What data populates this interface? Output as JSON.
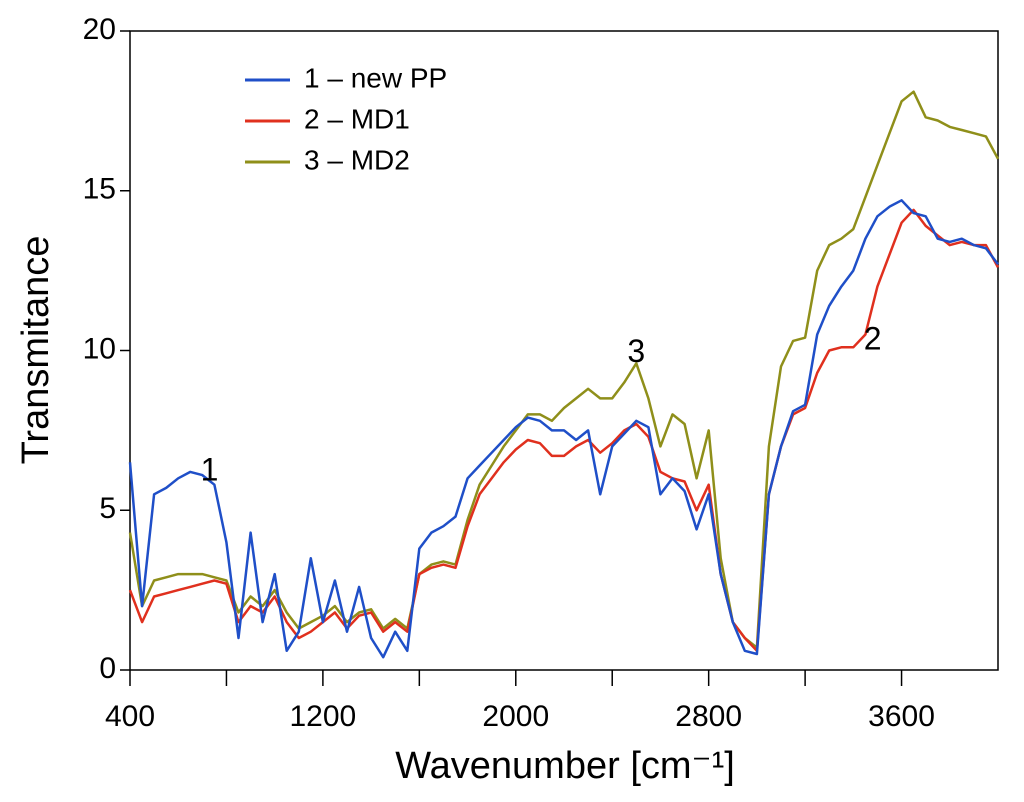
{
  "chart_data": {
    "type": "line",
    "x_label": "Wavenumber [cm⁻¹]",
    "y_label": "Transmitance",
    "xlim": [
      400,
      4000
    ],
    "xticks": [
      400,
      1200,
      2000,
      2800,
      3600
    ],
    "xminor_ticks": [
      800,
      1600,
      2400,
      3200
    ],
    "ylim": [
      0,
      20
    ],
    "yticks": [
      0,
      5,
      10,
      15,
      20
    ],
    "legend": "upper left",
    "x": [
      400,
      450,
      500,
      550,
      600,
      650,
      700,
      750,
      800,
      850,
      900,
      950,
      1000,
      1050,
      1100,
      1150,
      1200,
      1250,
      1300,
      1350,
      1400,
      1450,
      1500,
      1550,
      1600,
      1650,
      1700,
      1750,
      1800,
      1850,
      1900,
      1950,
      2000,
      2050,
      2100,
      2150,
      2200,
      2250,
      2300,
      2350,
      2400,
      2450,
      2500,
      2550,
      2600,
      2650,
      2700,
      2750,
      2800,
      2850,
      2900,
      2950,
      3000,
      3050,
      3100,
      3150,
      3200,
      3250,
      3300,
      3350,
      3400,
      3450,
      3500,
      3550,
      3600,
      3650,
      3700,
      3750,
      3800,
      3850,
      3900,
      3950,
      4000
    ],
    "series": [
      {
        "name": "1 – new PP",
        "color": "#1f4fc8",
        "values": [
          6.5,
          2.0,
          5.5,
          5.7,
          6.0,
          6.2,
          6.1,
          5.8,
          4.0,
          1.0,
          4.3,
          1.5,
          3.0,
          0.6,
          1.2,
          3.5,
          1.5,
          2.8,
          1.2,
          2.6,
          1.0,
          0.4,
          1.2,
          0.6,
          3.8,
          4.3,
          4.5,
          4.8,
          6.0,
          6.4,
          6.8,
          7.2,
          7.6,
          7.9,
          7.8,
          7.5,
          7.5,
          7.2,
          7.5,
          5.5,
          7.0,
          7.4,
          7.8,
          7.6,
          5.5,
          6.0,
          5.6,
          4.4,
          5.5,
          3.0,
          1.5,
          0.6,
          0.5,
          5.5,
          7.0,
          8.1,
          8.3,
          10.5,
          11.4,
          12.0,
          12.5,
          13.5,
          14.2,
          14.5,
          14.7,
          14.3,
          14.2,
          13.5,
          13.4,
          13.5,
          13.3,
          13.2,
          12.7
        ]
      },
      {
        "name": "2 – MD1",
        "color": "#e0301e",
        "values": [
          2.5,
          1.5,
          2.3,
          2.4,
          2.5,
          2.6,
          2.7,
          2.8,
          2.7,
          1.5,
          2.0,
          1.8,
          2.3,
          1.5,
          1.0,
          1.2,
          1.5,
          1.8,
          1.3,
          1.7,
          1.8,
          1.2,
          1.5,
          1.2,
          3.0,
          3.2,
          3.3,
          3.2,
          4.5,
          5.5,
          6.0,
          6.5,
          6.9,
          7.2,
          7.1,
          6.7,
          6.7,
          7.0,
          7.2,
          6.8,
          7.1,
          7.5,
          7.7,
          7.3,
          6.2,
          6.0,
          5.9,
          5.0,
          5.8,
          3.0,
          1.5,
          1.0,
          0.6,
          5.5,
          7.0,
          8.0,
          8.2,
          9.3,
          10.0,
          10.1,
          10.1,
          10.5,
          12.0,
          13.0,
          14.0,
          14.4,
          13.9,
          13.6,
          13.3,
          13.4,
          13.3,
          13.3,
          12.6
        ]
      },
      {
        "name": "3 – MD2",
        "color": "#8f8f1a",
        "values": [
          4.3,
          2.0,
          2.8,
          2.9,
          3.0,
          3.0,
          3.0,
          2.9,
          2.8,
          1.8,
          2.3,
          2.0,
          2.5,
          1.8,
          1.3,
          1.5,
          1.7,
          2.0,
          1.5,
          1.8,
          1.9,
          1.3,
          1.6,
          1.3,
          3.0,
          3.3,
          3.4,
          3.3,
          4.7,
          5.8,
          6.4,
          7.0,
          7.5,
          8.0,
          8.0,
          7.8,
          8.2,
          8.5,
          8.8,
          8.5,
          8.5,
          9.0,
          9.6,
          8.5,
          7.0,
          8.0,
          7.7,
          6.0,
          7.5,
          3.5,
          1.5,
          1.0,
          0.7,
          7.0,
          9.5,
          10.3,
          10.4,
          12.5,
          13.3,
          13.5,
          13.8,
          14.8,
          15.8,
          16.8,
          17.8,
          18.1,
          17.3,
          17.2,
          17.0,
          16.9,
          16.8,
          16.7,
          16.0
        ]
      }
    ],
    "annotations": [
      {
        "text": "1",
        "x": 730,
        "y": 6.2
      },
      {
        "text": "3",
        "x": 2500,
        "y": 9.9
      },
      {
        "text": "2",
        "x": 3480,
        "y": 10.3
      }
    ]
  }
}
